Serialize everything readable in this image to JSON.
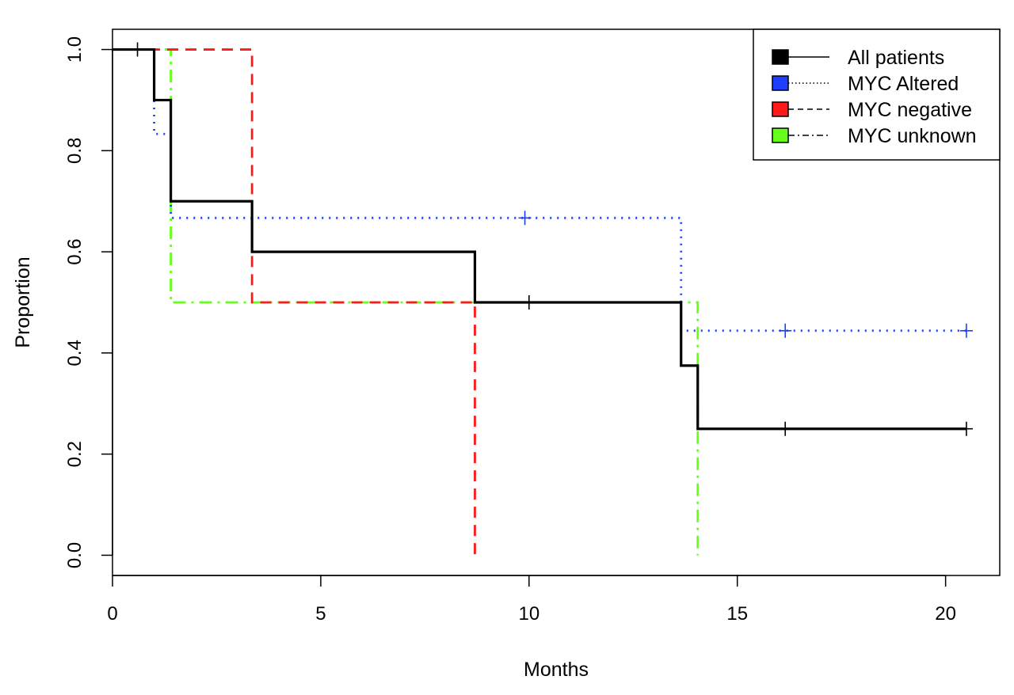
{
  "chart_data": {
    "type": "line",
    "subtype": "kaplan-meier step",
    "title": "",
    "xlabel": "Months",
    "ylabel": "Proportion",
    "xlim": [
      0,
      21.3
    ],
    "ylim": [
      -0.04,
      1.04
    ],
    "x_ticks": [
      0,
      5,
      10,
      15,
      20
    ],
    "x_tick_labels": [
      "0",
      "5",
      "10",
      "15",
      "20"
    ],
    "y_ticks": [
      0.0,
      0.2,
      0.4,
      0.6,
      0.8,
      1.0
    ],
    "y_tick_labels": [
      "0.0",
      "0.2",
      "0.4",
      "0.6",
      "0.8",
      "1.0"
    ],
    "grid": false,
    "legend_position": "top-right",
    "series": [
      {
        "name": "All patients",
        "color": "#000000",
        "line_style": "solid",
        "steps": [
          [
            0,
            1.0
          ],
          [
            1.0,
            0.9
          ],
          [
            1.4,
            0.7
          ],
          [
            3.35,
            0.6
          ],
          [
            8.7,
            0.5
          ],
          [
            13.65,
            0.375
          ],
          [
            14.05,
            0.25
          ]
        ],
        "end_x": 20.5,
        "censored": [
          [
            0.6,
            1.0
          ],
          [
            10.0,
            0.5
          ],
          [
            16.15,
            0.25
          ],
          [
            20.5,
            0.25
          ]
        ]
      },
      {
        "name": "MYC Altered",
        "color": "#1f3fff",
        "line_style": "dotted",
        "steps": [
          [
            0,
            1.0
          ],
          [
            1.0,
            0.833
          ],
          [
            1.4,
            0.667
          ],
          [
            13.65,
            0.444
          ]
        ],
        "end_x": 20.5,
        "censored": [
          [
            9.9,
            0.667
          ],
          [
            16.15,
            0.444
          ],
          [
            20.5,
            0.444
          ]
        ]
      },
      {
        "name": "MYC negative",
        "color": "#ff1a1a",
        "line_style": "dashed",
        "steps": [
          [
            0,
            1.0
          ],
          [
            3.35,
            0.5
          ],
          [
            8.7,
            0.0
          ]
        ],
        "end_x": 8.7,
        "censored": []
      },
      {
        "name": "MYC unknown",
        "color": "#66ff1a",
        "line_style": "dash-dot",
        "steps": [
          [
            0,
            1.0
          ],
          [
            1.4,
            0.5
          ],
          [
            14.05,
            0.0
          ]
        ],
        "end_x": 14.05,
        "censored": []
      }
    ]
  }
}
